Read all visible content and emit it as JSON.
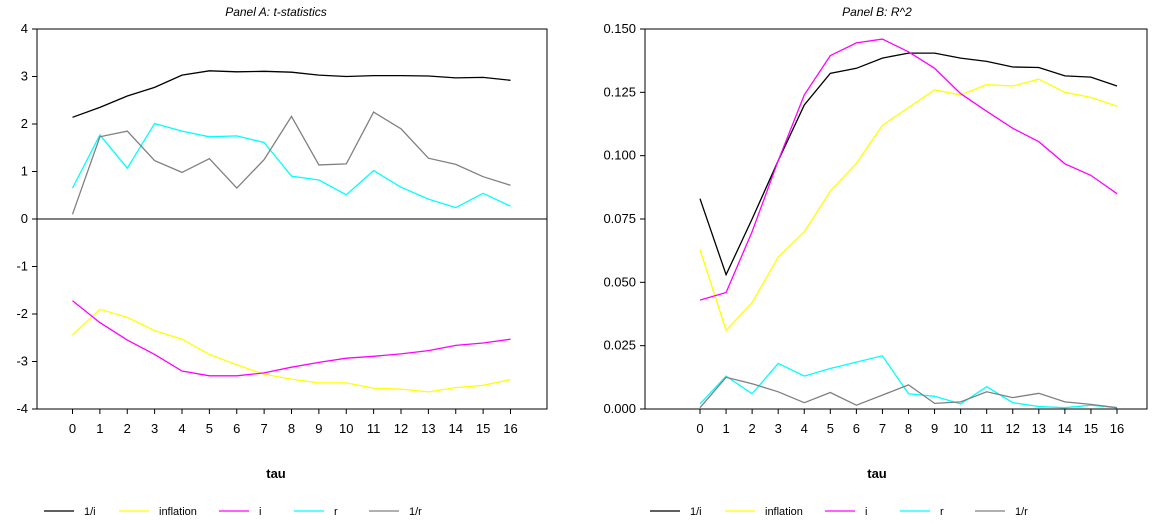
{
  "chart_data": [
    {
      "type": "line",
      "title": "Panel A: t-statistics",
      "xlabel": "tau",
      "ylabel": "",
      "x": [
        0,
        1,
        2,
        3,
        4,
        5,
        6,
        7,
        8,
        9,
        10,
        11,
        12,
        13,
        14,
        15,
        16
      ],
      "x_tick_labels": [
        "0",
        "1",
        "2",
        "3",
        "4",
        "5",
        "6",
        "7",
        "8",
        "9",
        "10",
        "11",
        "12",
        "13",
        "14",
        "15",
        "16"
      ],
      "ylim": [
        -4,
        4
      ],
      "y_ticks": [
        4,
        3,
        2,
        1,
        0,
        -1,
        -2,
        -3,
        -4
      ],
      "y_tick_labels": [
        "4",
        "3",
        "2",
        "1",
        "0",
        "-1",
        "-2",
        "-3",
        "-4"
      ],
      "zero_line": true,
      "grid": false,
      "legend_position": "bottom",
      "series": [
        {
          "name": "1/i",
          "color": "#000000",
          "values": [
            2.14,
            2.35,
            2.59,
            2.77,
            3.03,
            3.12,
            3.1,
            3.11,
            3.09,
            3.03,
            3.0,
            3.02,
            3.02,
            3.01,
            2.97,
            2.98,
            2.92
          ]
        },
        {
          "name": "inflation",
          "color": "#ffff00",
          "values": [
            -2.44,
            -1.9,
            -2.07,
            -2.35,
            -2.53,
            -2.85,
            -3.07,
            -3.27,
            -3.37,
            -3.45,
            -3.45,
            -3.56,
            -3.58,
            -3.64,
            -3.55,
            -3.5,
            -3.38
          ]
        },
        {
          "name": "i",
          "color": "#ff00ff",
          "values": [
            -1.72,
            -2.18,
            -2.55,
            -2.85,
            -3.2,
            -3.3,
            -3.3,
            -3.24,
            -3.12,
            -3.02,
            -2.93,
            -2.89,
            -2.84,
            -2.77,
            -2.66,
            -2.61,
            -2.53
          ]
        },
        {
          "name": "r",
          "color": "#00ffff",
          "values": [
            0.65,
            1.77,
            1.07,
            2.01,
            1.85,
            1.73,
            1.75,
            1.61,
            0.9,
            0.82,
            0.51,
            1.02,
            0.67,
            0.42,
            0.24,
            0.54,
            0.27
          ]
        },
        {
          "name": "1/r",
          "color": "#808080",
          "values": [
            0.1,
            1.73,
            1.85,
            1.23,
            0.98,
            1.27,
            0.65,
            1.25,
            2.16,
            1.14,
            1.16,
            2.25,
            1.9,
            1.28,
            1.15,
            0.89,
            0.71
          ]
        }
      ]
    },
    {
      "type": "line",
      "title": "Panel B: R^2",
      "xlabel": "tau",
      "ylabel": "",
      "x": [
        0,
        1,
        2,
        3,
        4,
        5,
        6,
        7,
        8,
        9,
        10,
        11,
        12,
        13,
        14,
        15,
        16
      ],
      "x_tick_labels": [
        "0",
        "1",
        "2",
        "3",
        "4",
        "5",
        "6",
        "7",
        "8",
        "9",
        "10",
        "11",
        "12",
        "13",
        "14",
        "15",
        "16"
      ],
      "ylim": [
        0,
        0.15
      ],
      "y_ticks": [
        0.15,
        0.125,
        0.1,
        0.075,
        0.05,
        0.025,
        0
      ],
      "y_tick_labels": [
        "0.150",
        "0.125",
        "0.100",
        "0.075",
        "0.050",
        "0.025",
        "0.000"
      ],
      "zero_line": false,
      "grid": false,
      "legend_position": "bottom",
      "series": [
        {
          "name": "1/i",
          "color": "#000000",
          "values": [
            0.083,
            0.053,
            0.075,
            0.098,
            0.12,
            0.1325,
            0.1345,
            0.1385,
            0.1405,
            0.1405,
            0.1385,
            0.1372,
            0.135,
            0.1348,
            0.1315,
            0.131,
            0.1275
          ]
        },
        {
          "name": "inflation",
          "color": "#ffff00",
          "values": [
            0.063,
            0.031,
            0.042,
            0.06,
            0.07,
            0.086,
            0.097,
            0.112,
            0.119,
            0.126,
            0.124,
            0.128,
            0.1275,
            0.1302,
            0.125,
            0.123,
            0.1195
          ]
        },
        {
          "name": "i",
          "color": "#ff00ff",
          "values": [
            0.043,
            0.046,
            0.07,
            0.098,
            0.124,
            0.1395,
            0.1445,
            0.146,
            0.141,
            0.1345,
            0.1245,
            0.1175,
            0.1108,
            0.1055,
            0.0968,
            0.0922,
            0.085
          ]
        },
        {
          "name": "r",
          "color": "#00ffff",
          "values": [
            0.002,
            0.013,
            0.006,
            0.018,
            0.013,
            0.016,
            0.0185,
            0.021,
            0.006,
            0.005,
            0.002,
            0.0088,
            0.0025,
            0.001,
            0.0005,
            0.0015,
            0.0005
          ]
        },
        {
          "name": "1/r",
          "color": "#808080",
          "values": [
            0.0005,
            0.0125,
            0.01,
            0.0068,
            0.0025,
            0.0065,
            0.0015,
            0.0055,
            0.0095,
            0.0022,
            0.0028,
            0.0068,
            0.0045,
            0.0062,
            0.0028,
            0.0018,
            0.0005
          ]
        }
      ]
    }
  ]
}
